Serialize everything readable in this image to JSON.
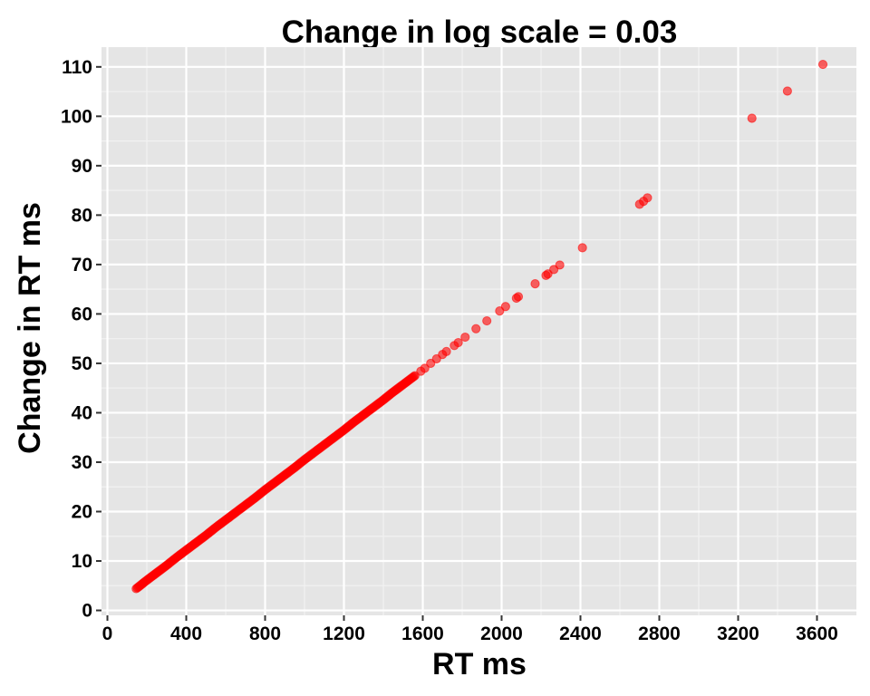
{
  "chart_data": {
    "type": "scatter",
    "title": "Change in log scale = 0.03",
    "xlabel": "RT ms",
    "ylabel": "Change in RT ms",
    "xlim": [
      -30,
      3800
    ],
    "ylim": [
      -1,
      114
    ],
    "xticks": [
      0,
      400,
      800,
      1200,
      1600,
      2000,
      2400,
      2800,
      3200,
      3600
    ],
    "yticks": [
      0,
      10,
      20,
      30,
      40,
      50,
      60,
      70,
      80,
      90,
      100,
      110
    ],
    "grid": true,
    "background": "#e5e5e5",
    "point_color": "#ff0000",
    "series": [
      {
        "x": [
          146,
          175,
          190,
          220,
          260,
          300,
          350,
          400,
          450,
          500,
          550,
          600,
          650,
          700,
          750,
          800,
          850,
          900,
          950,
          1000,
          1050,
          1100,
          1150,
          1200,
          1250,
          1300,
          1350,
          1400,
          1440,
          1480,
          1520,
          1560,
          1590,
          1610,
          1640,
          1670,
          1700,
          1720,
          1760,
          1780,
          1815,
          1870,
          1925,
          1990,
          2020,
          2075,
          2085,
          2170,
          2225,
          2235,
          2265,
          2295,
          2410,
          2700,
          2720,
          2740,
          3270,
          3450,
          3630
        ],
        "y": [
          4.4,
          5.3,
          5.8,
          6.7,
          7.9,
          9.1,
          10.7,
          12.2,
          13.7,
          15.2,
          16.8,
          18.3,
          19.8,
          21.3,
          22.8,
          24.4,
          25.9,
          27.4,
          28.9,
          30.5,
          32.0,
          33.5,
          35.0,
          36.5,
          38.1,
          39.6,
          41.1,
          42.6,
          43.9,
          45.1,
          46.3,
          47.5,
          48.4,
          49.0,
          50.0,
          50.9,
          51.8,
          52.4,
          53.6,
          54.2,
          55.3,
          57.0,
          58.6,
          60.6,
          61.5,
          63.2,
          63.5,
          66.1,
          67.8,
          68.1,
          69.0,
          69.9,
          73.4,
          82.2,
          82.8,
          83.5,
          99.6,
          105.1,
          110.5
        ]
      }
    ]
  }
}
